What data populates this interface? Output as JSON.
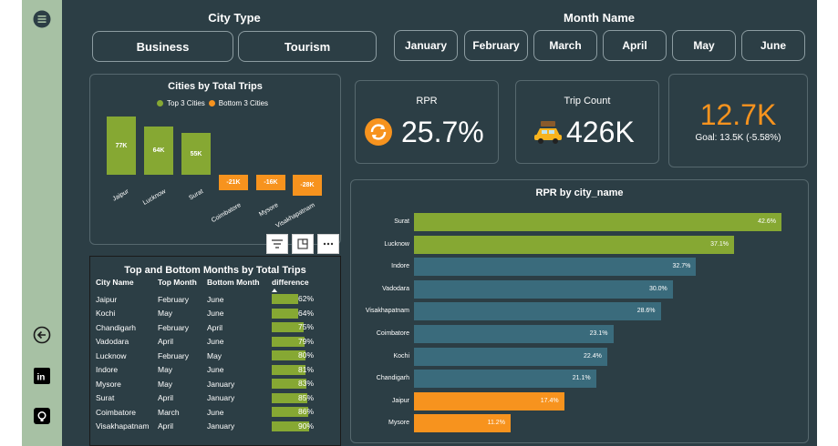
{
  "slicers": {
    "city_type": {
      "title": "City Type",
      "options": [
        "Business",
        "Tourism"
      ]
    },
    "month_name": {
      "title": "Month Name",
      "options": [
        "January",
        "February",
        "March",
        "April",
        "May",
        "June"
      ]
    }
  },
  "cities_chart": {
    "title": "Cities by Total Trips",
    "legend": [
      {
        "label": "Top 3 Cities",
        "color": "#86a833"
      },
      {
        "label": "Bottom 3 Cities",
        "color": "#f7931e"
      }
    ],
    "chart_data": {
      "type": "bar",
      "categories": [
        "Jaipur",
        "Lucknow",
        "Surat",
        "Coimbatore",
        "Mysore",
        "Visakhapatnam"
      ],
      "values": [
        77,
        64,
        55,
        -21,
        -16,
        -28
      ],
      "labels": [
        "77K",
        "64K",
        "55K",
        "-21K",
        "-16K",
        "-28K"
      ],
      "colors": [
        "#86a833",
        "#86a833",
        "#86a833",
        "#f7931e",
        "#f7931e",
        "#f7931e"
      ]
    }
  },
  "visual_toolbar": {
    "icons": [
      "filter-icon",
      "focus-mode-icon",
      "more-options-icon"
    ]
  },
  "kpis": {
    "rpr": {
      "label": "RPR",
      "value": "25.7%"
    },
    "trip_count": {
      "label": "Trip Count",
      "value": "426K"
    },
    "goal": {
      "value": "12.7K",
      "subtitle": "Goal: 13.5K (-5.58%)",
      "color": "#f7931e"
    }
  },
  "months_table": {
    "title": "Top and Bottom Months by Total Trips",
    "columns": [
      "City Name",
      "Top Month",
      "Bottom Month",
      "difference"
    ],
    "rows": [
      {
        "city": "Jaipur",
        "top": "February",
        "bottom": "June",
        "diff": "62%",
        "pct": 62
      },
      {
        "city": "Kochi",
        "top": "May",
        "bottom": "June",
        "diff": "64%",
        "pct": 64
      },
      {
        "city": "Chandigarh",
        "top": "February",
        "bottom": "April",
        "diff": "75%",
        "pct": 75
      },
      {
        "city": "Vadodara",
        "top": "April",
        "bottom": "June",
        "diff": "79%",
        "pct": 79
      },
      {
        "city": "Lucknow",
        "top": "February",
        "bottom": "May",
        "diff": "80%",
        "pct": 80
      },
      {
        "city": "Indore",
        "top": "May",
        "bottom": "June",
        "diff": "81%",
        "pct": 81
      },
      {
        "city": "Mysore",
        "top": "May",
        "bottom": "January",
        "diff": "83%",
        "pct": 83
      },
      {
        "city": "Surat",
        "top": "April",
        "bottom": "January",
        "diff": "85%",
        "pct": 85
      },
      {
        "city": "Coimbatore",
        "top": "March",
        "bottom": "June",
        "diff": "86%",
        "pct": 86
      },
      {
        "city": "Visakhapatnam",
        "top": "April",
        "bottom": "January",
        "diff": "90%",
        "pct": 90
      }
    ]
  },
  "rpr_chart": {
    "title": "RPR by city_name",
    "chart_data": {
      "type": "bar",
      "orientation": "horizontal",
      "categories": [
        "Surat",
        "Lucknow",
        "Indore",
        "Vadodara",
        "Visakhapatnam",
        "Coimbatore",
        "Kochi",
        "Chandigarh",
        "Jaipur",
        "Mysore"
      ],
      "values": [
        42.6,
        37.1,
        32.7,
        30.0,
        28.6,
        23.1,
        22.4,
        21.1,
        17.4,
        11.2
      ],
      "labels": [
        "42.6%",
        "37.1%",
        "32.7%",
        "30.0%",
        "28.6%",
        "23.1%",
        "22.4%",
        "21.1%",
        "17.4%",
        "11.2%"
      ],
      "colors": [
        "#86a833",
        "#86a833",
        "#3a6b7c",
        "#3a6b7c",
        "#3a6b7c",
        "#3a6b7c",
        "#3a6b7c",
        "#3a6b7c",
        "#f7931e",
        "#f7931e"
      ]
    }
  },
  "sidebar": {
    "icons": [
      "menu-icon",
      "back-arrow-icon",
      "linkedin-icon",
      "github-icon"
    ]
  }
}
